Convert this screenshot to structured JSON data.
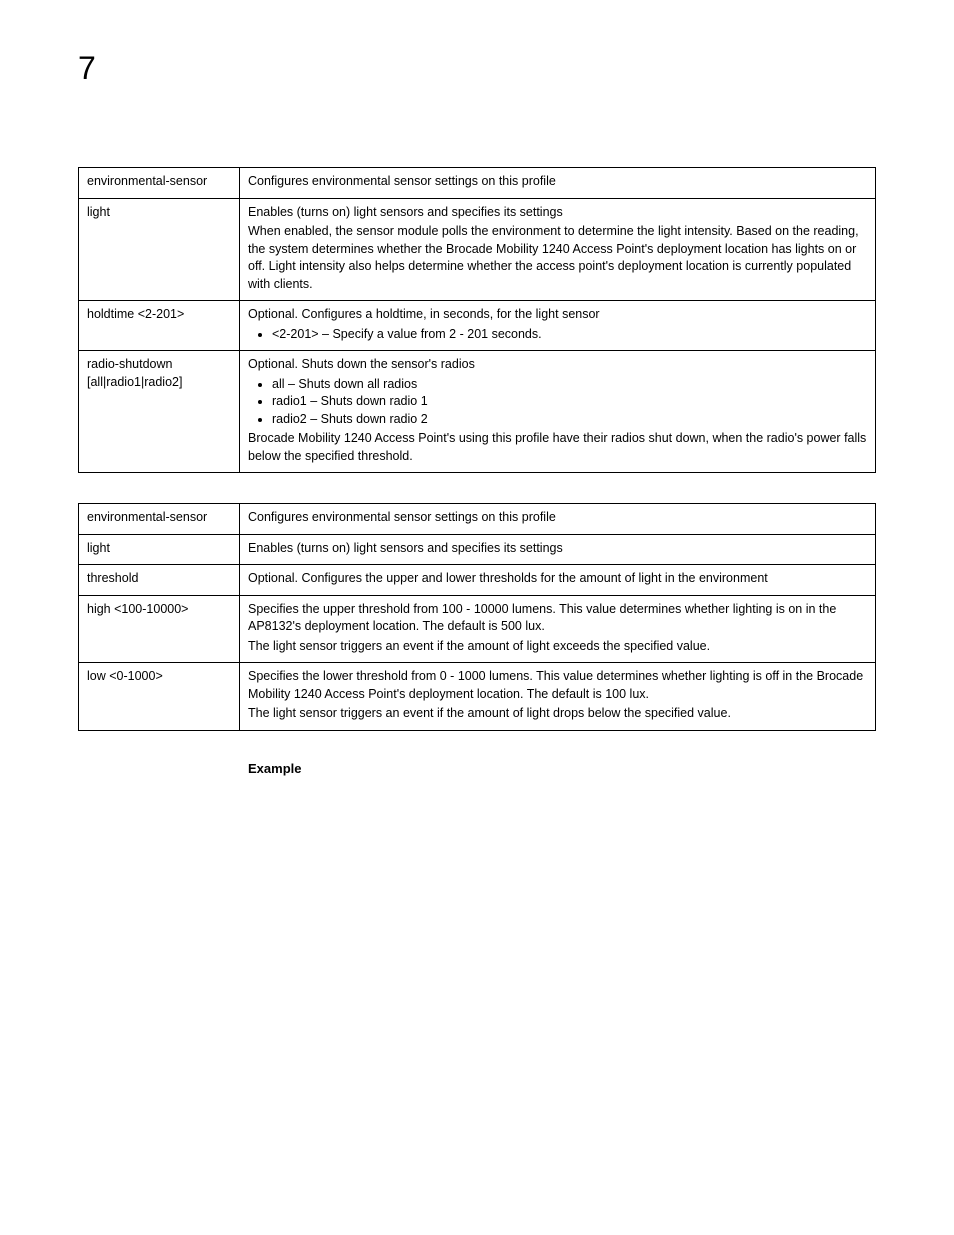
{
  "page_number": "7",
  "table1": {
    "rows": [
      {
        "key": "environmental-sensor",
        "desc_lines": [
          "Configures environmental sensor settings on this profile"
        ],
        "bullets": [],
        "after_lines": []
      },
      {
        "key": "light",
        "desc_lines": [
          "Enables (turns on) light sensors and specifies its settings",
          "When enabled, the sensor module polls the environment to determine the light intensity. Based on the reading, the system determines whether the Brocade Mobility 1240 Access Point's deployment location has lights on or off. Light intensity also helps determine whether the access point's deployment location is currently populated with clients."
        ],
        "bullets": [],
        "after_lines": []
      },
      {
        "key": "holdtime <2-201>",
        "desc_lines": [
          "Optional. Configures a holdtime, in seconds, for the light sensor"
        ],
        "bullets": [
          "<2-201> – Specify a value from 2 - 201 seconds."
        ],
        "after_lines": []
      },
      {
        "key": "radio-shutdown [all|radio1|radio2]",
        "desc_lines": [
          "Optional. Shuts down the sensor's radios"
        ],
        "bullets": [
          "all – Shuts down all radios",
          "radio1 – Shuts down radio 1",
          "radio2 – Shuts down radio 2"
        ],
        "after_lines": [
          "Brocade Mobility 1240 Access Point's using this profile have their radios shut down, when the radio's power falls below the specified threshold."
        ]
      }
    ]
  },
  "table2": {
    "rows": [
      {
        "key": "environmental-sensor",
        "desc_lines": [
          "Configures environmental sensor settings on this profile"
        ],
        "bullets": [],
        "after_lines": []
      },
      {
        "key": "light",
        "desc_lines": [
          "Enables (turns on) light sensors and specifies its settings"
        ],
        "bullets": [],
        "after_lines": []
      },
      {
        "key": "threshold",
        "desc_lines": [
          "Optional. Configures the upper and lower thresholds for the amount of light in the environment"
        ],
        "bullets": [],
        "after_lines": []
      },
      {
        "key": "high <100-10000>",
        "desc_lines": [
          "Specifies the upper threshold from 100 - 10000 lumens. This value determines whether lighting is on in the AP8132's deployment location. The default is 500 lux.",
          "The light sensor triggers an event if the amount of light exceeds the specified value."
        ],
        "bullets": [],
        "after_lines": []
      },
      {
        "key": "low <0-1000>",
        "desc_lines": [
          "Specifies the lower threshold from 0 - 1000 lumens. This value determines whether lighting is off in the Brocade Mobility 1240 Access Point's deployment location. The default is 100 lux.",
          "The light sensor triggers an event if the amount of light drops below the specified value."
        ],
        "bullets": [],
        "after_lines": []
      }
    ]
  },
  "example_label": "Example"
}
